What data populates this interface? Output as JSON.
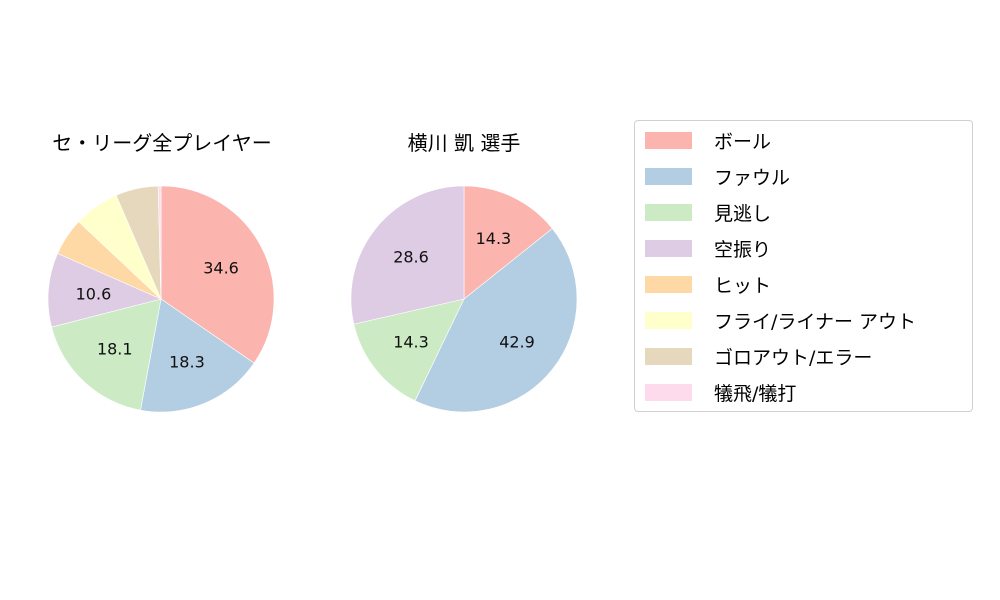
{
  "chart_data": [
    {
      "type": "pie",
      "title": "セ・リーグ全プレイヤー",
      "categories": [
        "ボール",
        "ファウル",
        "見逃し",
        "空振り",
        "ヒット",
        "フライ/ライナー アウト",
        "ゴロアウト/エラー",
        "犠飛/犠打"
      ],
      "values": [
        34.6,
        18.3,
        18.1,
        10.6,
        5.4,
        6.5,
        6.1,
        0.4
      ],
      "labels_shown": [
        "34.6",
        "18.3",
        "18.1",
        "10.6",
        "",
        "",
        "",
        ""
      ],
      "start_angle": 90,
      "direction": "clockwise"
    },
    {
      "type": "pie",
      "title": "横川 凱  選手",
      "categories": [
        "ボール",
        "ファウル",
        "見逃し",
        "空振り",
        "ヒット",
        "フライ/ライナー アウト",
        "ゴロアウト/エラー",
        "犠飛/犠打"
      ],
      "values": [
        14.3,
        42.9,
        14.3,
        28.6,
        0,
        0,
        0,
        0
      ],
      "labels_shown": [
        "14.3",
        "42.9",
        "14.3",
        "28.6",
        "",
        "",
        "",
        ""
      ],
      "start_angle": 90,
      "direction": "clockwise"
    }
  ],
  "legend": {
    "items": [
      {
        "label": "ボール",
        "color": "#fbb4ae"
      },
      {
        "label": "ファウル",
        "color": "#b3cde3"
      },
      {
        "label": "見逃し",
        "color": "#ccebc5"
      },
      {
        "label": "空振り",
        "color": "#decbe4"
      },
      {
        "label": "ヒット",
        "color": "#fed9a6"
      },
      {
        "label": "フライ/ライナー アウト",
        "color": "#ffffcc"
      },
      {
        "label": "ゴロアウト/エラー",
        "color": "#e5d8bd"
      },
      {
        "label": "犠飛/犠打",
        "color": "#fddaec"
      }
    ]
  },
  "titles": {
    "left": "セ・リーグ全プレイヤー",
    "right": "横川 凱  選手"
  }
}
